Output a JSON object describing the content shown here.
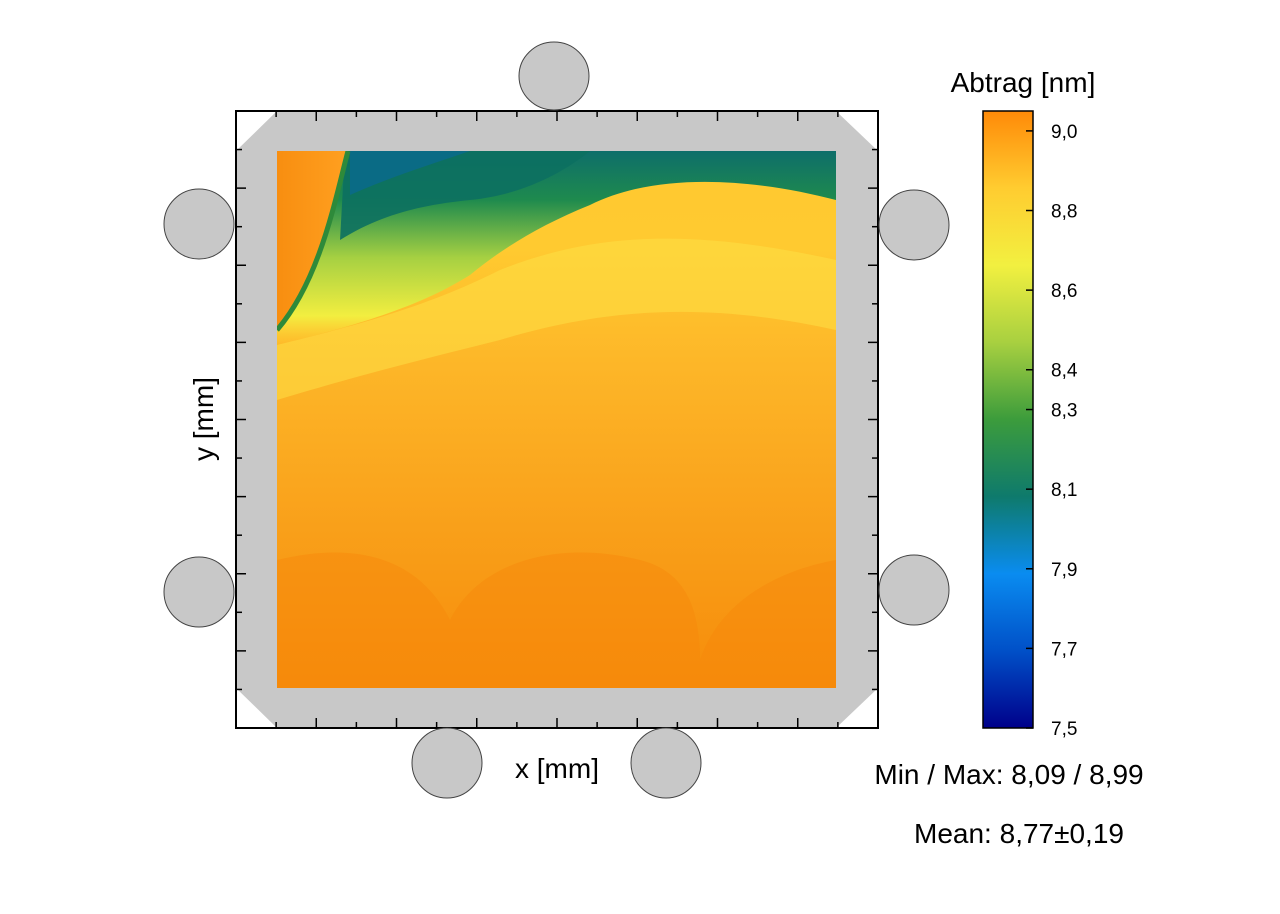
{
  "chart_data": {
    "type": "heatmap",
    "title": "",
    "xlabel": "x [mm]",
    "ylabel": "y [mm]",
    "colorbar": {
      "title": "Abtrag [nm]",
      "range": [
        7.5,
        9.05
      ],
      "ticks": [
        "9,0",
        "8,8",
        "8,6",
        "8,4",
        "8,3",
        "8,1",
        "7,9",
        "7,7",
        "7,5"
      ],
      "tick_values": [
        9.0,
        8.8,
        8.6,
        8.4,
        8.3,
        8.1,
        7.9,
        7.7,
        7.5
      ],
      "colors": [
        "#00008a",
        "#0050c8",
        "#0a8cf0",
        "#0e7a6c",
        "#3c9c3c",
        "#a8d040",
        "#f2f040",
        "#ffcc30",
        "#ff8a08"
      ]
    },
    "grid": false,
    "legend": "right"
  },
  "stats": {
    "minmax": "Min / Max: 8,09 / 8,99",
    "mean": "Mean: 8,77±0,19"
  }
}
